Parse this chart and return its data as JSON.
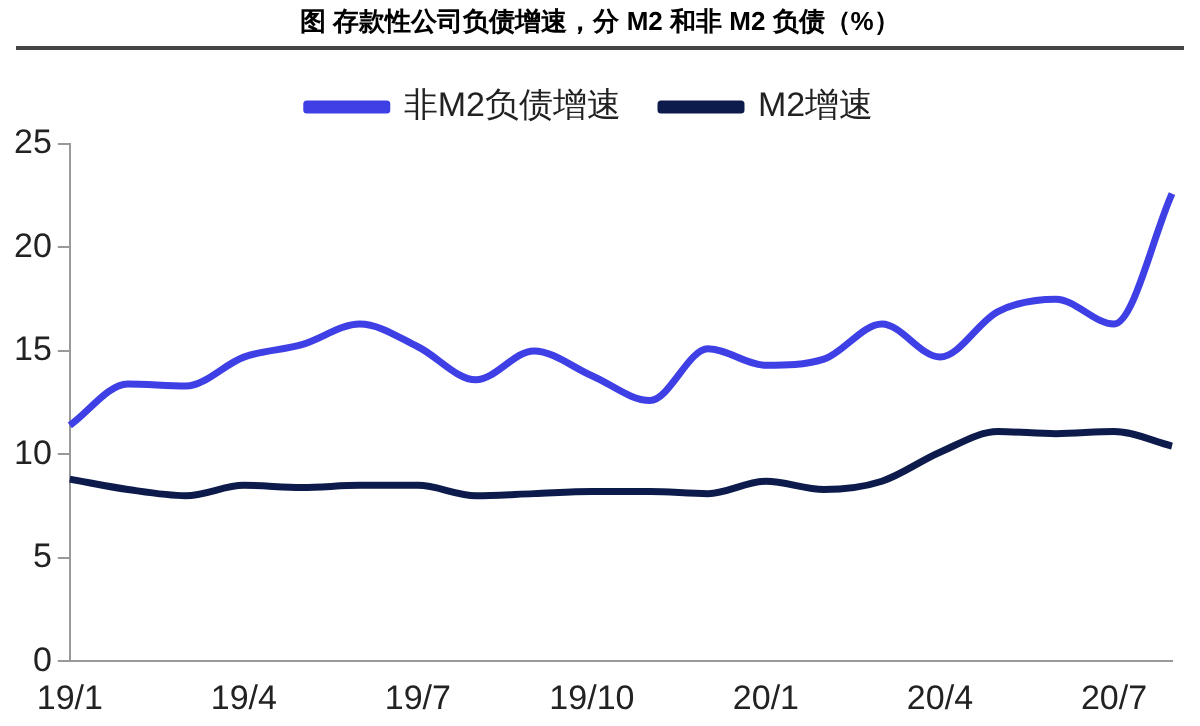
{
  "chart_data": {
    "type": "line",
    "title": "图 存款性公司负债增速，分 M2 和非 M2 负债（%）",
    "categories": [
      "19/1",
      null,
      null,
      "19/4",
      null,
      null,
      "19/7",
      null,
      null,
      "19/10",
      null,
      null,
      "20/1",
      null,
      null,
      "20/4",
      null,
      null,
      "20/7",
      null
    ],
    "series": [
      {
        "name": "非M2负债增速",
        "color": "#3f3fe6",
        "values": [
          11.4,
          13.4,
          13.3,
          14.7,
          15.3,
          16.3,
          15.2,
          13.6,
          15.0,
          13.8,
          12.6,
          15.1,
          14.3,
          14.6,
          16.3,
          14.7,
          16.9,
          17.5,
          16.3,
          22.6
        ]
      },
      {
        "name": "M2增速",
        "color": "#0d1b4c",
        "values": [
          8.8,
          8.3,
          8.0,
          8.5,
          8.4,
          8.5,
          8.5,
          8.0,
          8.1,
          8.2,
          8.2,
          8.1,
          8.7,
          8.3,
          8.7,
          10.1,
          11.1,
          11.0,
          11.1,
          10.4
        ]
      }
    ],
    "ylim": [
      0,
      25
    ],
    "yticks": [
      0,
      5,
      10,
      15,
      20,
      25
    ],
    "grid": false,
    "legend": "top",
    "marker": "none",
    "line_style": "solid"
  }
}
